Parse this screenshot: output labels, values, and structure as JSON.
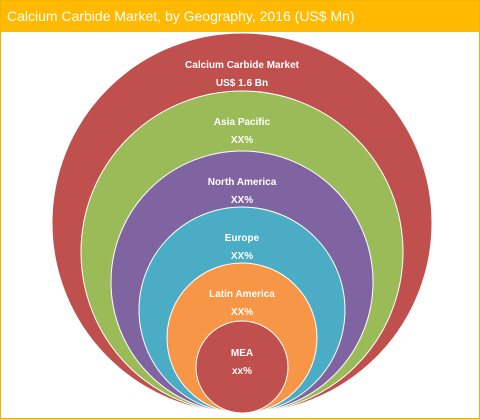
{
  "title": "Calcium Carbide Market, by Geography, 2016 (US$ Mn)",
  "chart_data": {
    "type": "nested-circles",
    "title": "Calcium Carbide Market, by Geography, 2016 (US$ Mn)",
    "levels": [
      {
        "name": "Calcium Carbide Market",
        "value": "US$ 1.6 Bn",
        "color": "#c0504d"
      },
      {
        "name": "Asia Pacific",
        "value": "XX%",
        "color": "#9bbb59"
      },
      {
        "name": "North America",
        "value": "XX%",
        "color": "#8064a2"
      },
      {
        "name": "Europe",
        "value": "XX%",
        "color": "#4bacc6"
      },
      {
        "name": "Latin America",
        "value": "XX%",
        "color": "#f79646"
      },
      {
        "name": "MEA",
        "value": "xx%",
        "color": "#c0504d"
      }
    ]
  }
}
